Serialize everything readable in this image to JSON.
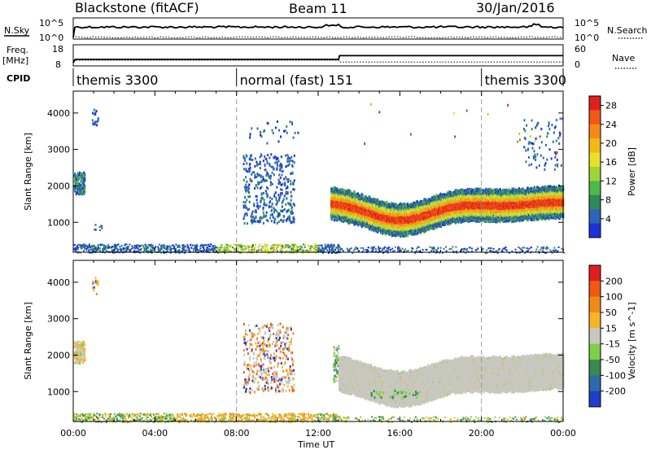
{
  "header": {
    "station": "Blackstone (fitACF)",
    "beam": "Beam 11",
    "date": "30/Jan/2016"
  },
  "side_labels": {
    "nsky": "N.Sky",
    "nsearch": "N.Search",
    "freq_line1": "Freq.",
    "freq_line2": "[MHz]",
    "nave": "Nave",
    "cpid": "CPID"
  },
  "small_axes": {
    "noise_left_ticks": [
      "10^5",
      "10^0"
    ],
    "noise_right_ticks": [
      "10^5",
      "10^0"
    ],
    "freq_left_ticks": [
      "18",
      "8"
    ],
    "nave_right_ticks": [
      "60",
      "0"
    ]
  },
  "cpid_segments": [
    {
      "label": "themis 3300",
      "start": 0,
      "end": 8
    },
    {
      "label": "normal (fast) 151",
      "start": 8,
      "end": 20
    },
    {
      "label": "themis 3300",
      "start": 20,
      "end": 24
    }
  ],
  "freq_series": {
    "name": "Freq.",
    "x_hours": [
      0,
      0.1,
      13.0,
      13.05,
      24
    ],
    "mhz": [
      8.5,
      10.5,
      10.5,
      12.8,
      12.8
    ]
  },
  "nave_series": {
    "name": "Nave",
    "x_hours": [
      0,
      13.0,
      13.05,
      24
    ],
    "values": [
      12,
      12,
      5,
      5
    ]
  },
  "chart_data": [
    {
      "type": "heatmap",
      "panel": "power",
      "ylabel": "Slant Range [km]",
      "xlabel": "Time UT",
      "xlim_hours": [
        0,
        24
      ],
      "ylim_km": [
        180,
        4600
      ],
      "x_tick_labels": [
        "00:00",
        "04:00",
        "08:00",
        "12:00",
        "16:00",
        "20:00",
        "00:00"
      ],
      "y_tick_labels": [
        "1000",
        "2000",
        "3000",
        "4000"
      ],
      "y_tick_values": [
        1000,
        2000,
        3000,
        4000
      ],
      "colorbar": {
        "label": "Power [dB]",
        "tick_labels": [
          "4",
          "8",
          "12",
          "16",
          "20",
          "24",
          "28"
        ],
        "range": [
          0,
          30
        ],
        "colors": [
          "#1f2fd6",
          "#2e64b8",
          "#2e8a58",
          "#4fb84a",
          "#9fd43a",
          "#e6e22a",
          "#f5b81a",
          "#f58a18",
          "#f05a18",
          "#e02020"
        ]
      }
    },
    {
      "type": "heatmap",
      "panel": "velocity",
      "ylabel": "Slant Range [km]",
      "xlabel": "Time UT",
      "xlim_hours": [
        0,
        24
      ],
      "ylim_km": [
        180,
        4600
      ],
      "x_tick_labels": [
        "00:00",
        "04:00",
        "08:00",
        "12:00",
        "16:00",
        "20:00",
        "00:00"
      ],
      "y_tick_labels": [
        "1000",
        "2000",
        "3000",
        "4000"
      ],
      "y_tick_values": [
        1000,
        2000,
        3000,
        4000
      ],
      "colorbar": {
        "label": "Velocity [m s^-1]",
        "tick_labels": [
          "200",
          "100",
          "50",
          "15",
          "-15",
          "-50",
          "-100",
          "-200"
        ],
        "colors": [
          "#1f3fc8",
          "#2f6aa8",
          "#3a8a50",
          "#7ecf4a",
          "#c8c8c0",
          "#f5b42a",
          "#f08a18",
          "#ee5a14",
          "#e01e1e"
        ]
      }
    }
  ],
  "footer": {
    "xlabel": "Time UT"
  }
}
